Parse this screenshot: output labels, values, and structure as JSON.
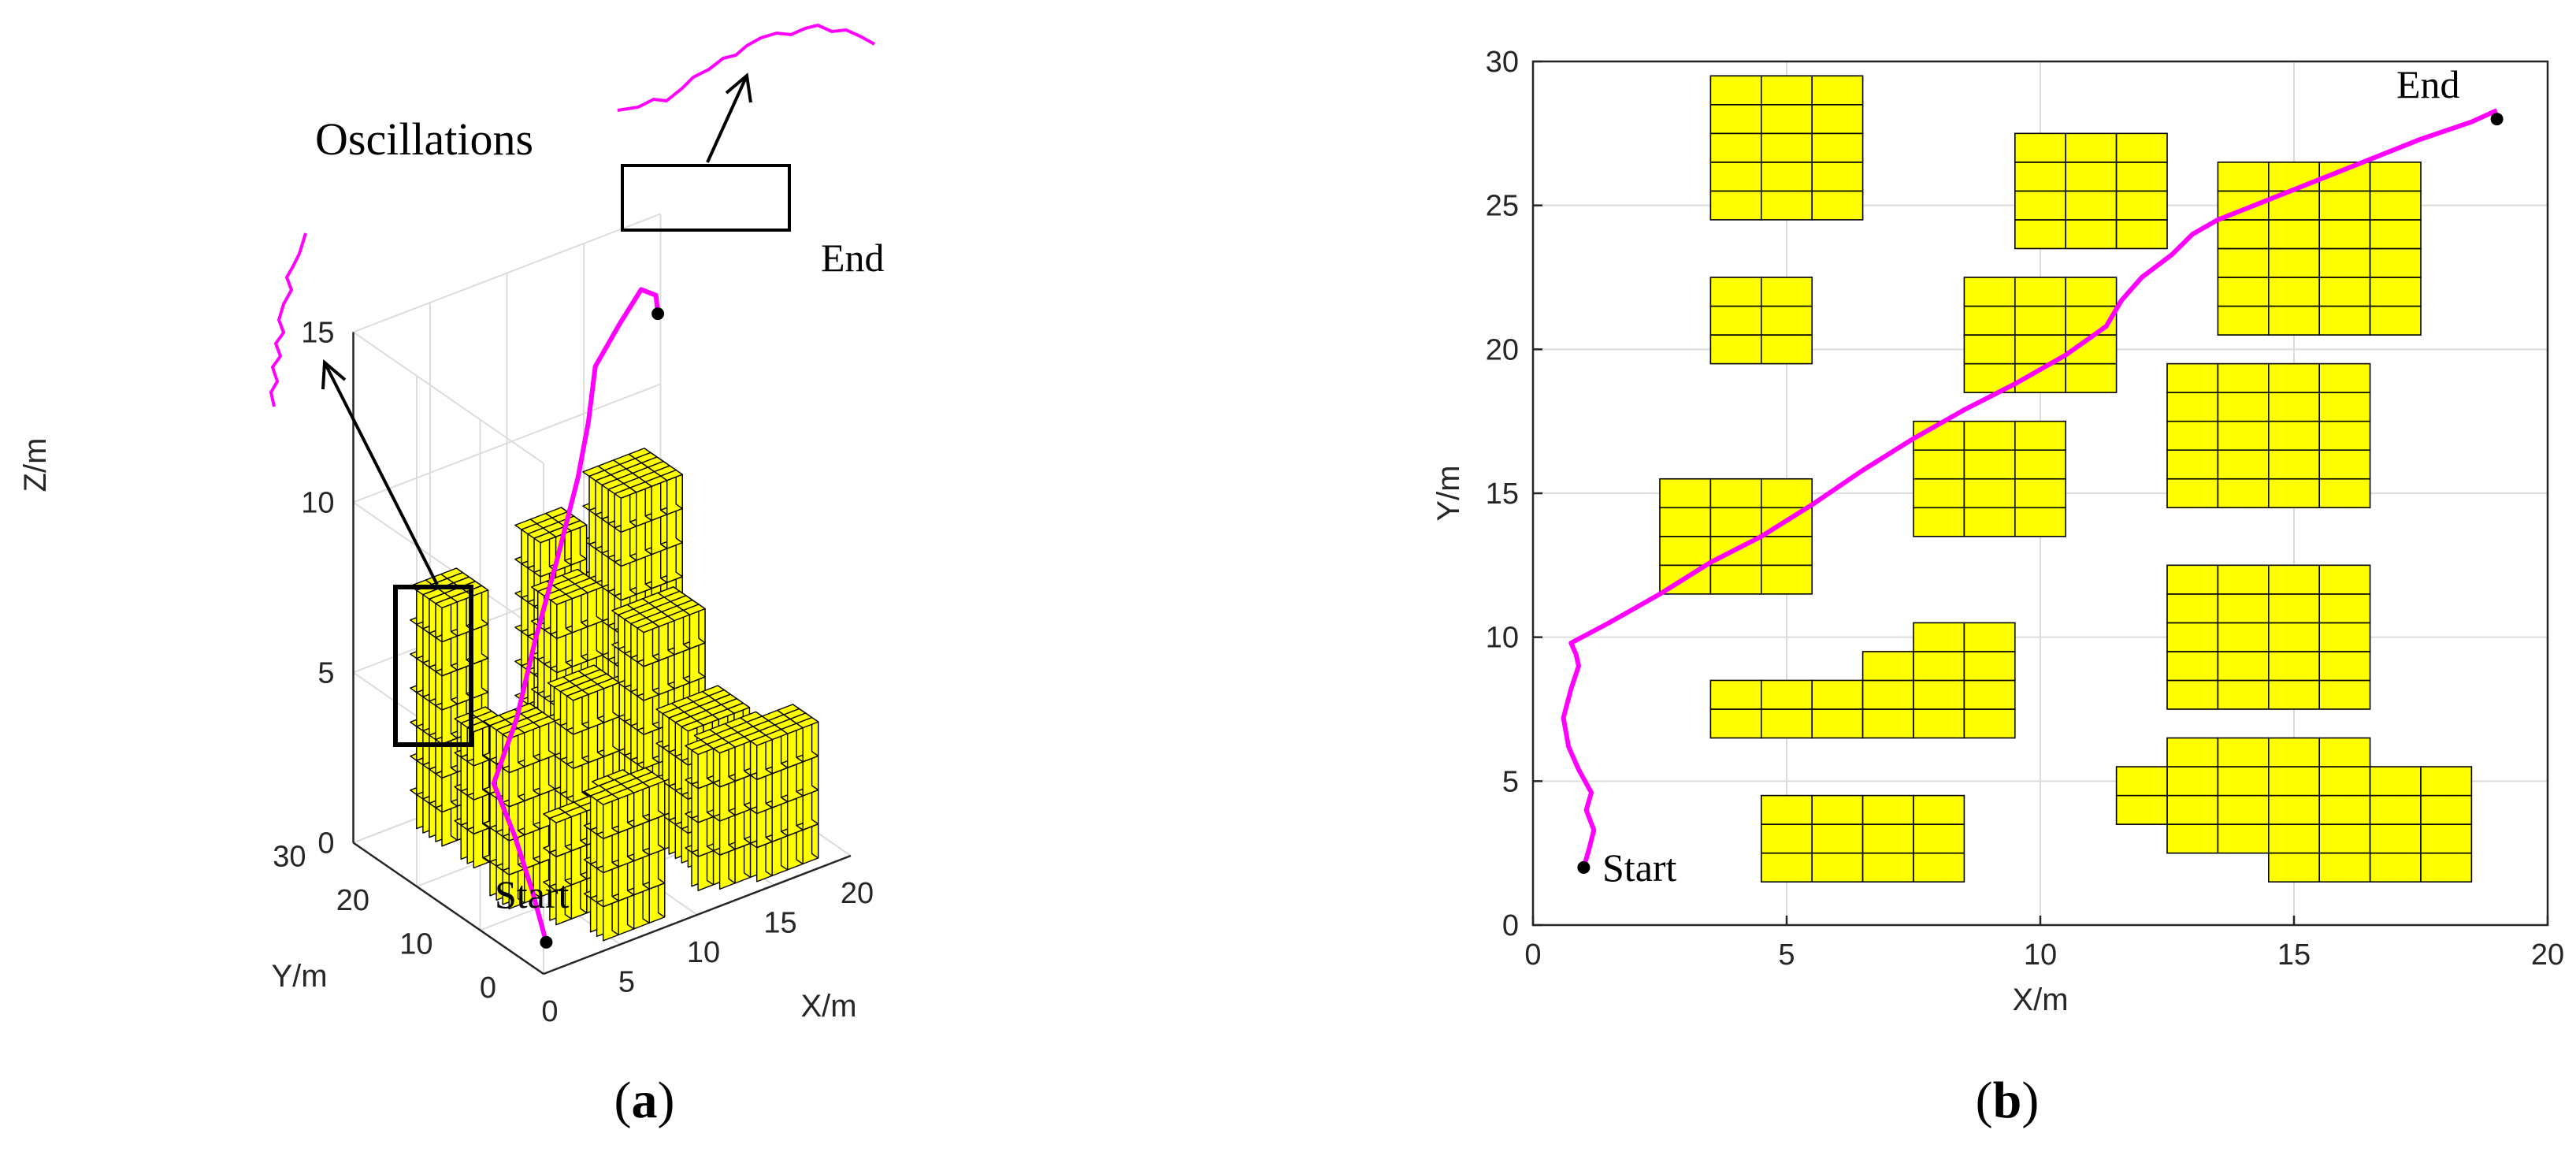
{
  "colors": {
    "obstacle_fill": "#ffff00",
    "obstacle_stroke": "#000000",
    "path": "#ff00ff",
    "marker": "#000000",
    "grid": "#dcdcdc"
  },
  "chart_data": [
    {
      "panel": "a",
      "type": "line",
      "panel_label": {
        "open": "(",
        "letter": "a",
        "close": ")"
      },
      "xlabel": "X/m",
      "ylabel": "Y/m",
      "zlabel": "Z/m",
      "xlim": [
        0,
        20
      ],
      "ylim": [
        0,
        30
      ],
      "zlim": [
        0,
        15
      ],
      "x_ticks": [
        "0",
        "5",
        "10",
        "15",
        "20"
      ],
      "y_ticks": [
        "0",
        "10",
        "20",
        "30"
      ],
      "z_ticks": [
        "0",
        "5",
        "10",
        "15"
      ],
      "grid": true,
      "view": "3-D",
      "start_label": "Start",
      "end_label": "End",
      "annotation": "Oscillations",
      "series": [
        {
          "values_xyz": [
            [
              1,
              2,
              0.5
            ],
            [
              0.9,
              4,
              1.8
            ],
            [
              1,
              7,
              3
            ],
            [
              0.8,
              9.8,
              4.2
            ],
            [
              3,
              11.5,
              5.5
            ],
            [
              5.5,
              14.6,
              7
            ],
            [
              8,
              17.2,
              8.6
            ],
            [
              10.5,
              20,
              10.2
            ],
            [
              12,
              22,
              11.3
            ],
            [
              13.4,
              24.3,
              12.4
            ],
            [
              15.5,
              25.6,
              13.1
            ],
            [
              17.5,
              27,
              13.6
            ],
            [
              19,
              28.3,
              13
            ],
            [
              19,
              28,
              12.5
            ]
          ]
        }
      ],
      "obstacles": [
        {
          "x": [
            3.5,
            6.5
          ],
          "y": [
            24.5,
            29.5
          ],
          "z": [
            0,
            6.5
          ]
        },
        {
          "x": [
            9.5,
            12.5
          ],
          "y": [
            23.5,
            27.5
          ],
          "z": [
            0,
            8
          ]
        },
        {
          "x": [
            13.5,
            17.5
          ],
          "y": [
            20.5,
            26.5
          ],
          "z": [
            0,
            9
          ]
        },
        {
          "x": [
            3.5,
            5.5
          ],
          "y": [
            19.5,
            22.5
          ],
          "z": [
            0,
            4
          ]
        },
        {
          "x": [
            8.5,
            11.5
          ],
          "y": [
            18.5,
            22.5
          ],
          "z": [
            0,
            7
          ]
        },
        {
          "x": [
            12.5,
            16.5
          ],
          "y": [
            14.5,
            19.5
          ],
          "z": [
            0,
            6
          ]
        },
        {
          "x": [
            7.5,
            10.5
          ],
          "y": [
            13.5,
            17.5
          ],
          "z": [
            0,
            5
          ]
        },
        {
          "x": [
            2.5,
            5.5
          ],
          "y": [
            11.5,
            15.5
          ],
          "z": [
            0,
            5
          ]
        },
        {
          "x": [
            12.5,
            16.5
          ],
          "y": [
            7.5,
            12.5
          ],
          "z": [
            0,
            4
          ]
        },
        {
          "x": [
            3.5,
            9.5
          ],
          "y": [
            6.5,
            8.5
          ],
          "z": [
            0,
            3
          ]
        },
        {
          "x": [
            6.5,
            9.5
          ],
          "y": [
            8.5,
            9.5
          ],
          "z": [
            0,
            3
          ]
        },
        {
          "x": [
            7.5,
            9.5
          ],
          "y": [
            9.5,
            10.5
          ],
          "z": [
            0,
            3
          ]
        },
        {
          "x": [
            12.5,
            16.5
          ],
          "y": [
            2.5,
            6.5
          ],
          "z": [
            0,
            4
          ]
        },
        {
          "x": [
            11.5,
            12.5
          ],
          "y": [
            3.5,
            5.5
          ],
          "z": [
            0,
            4
          ]
        },
        {
          "x": [
            16.5,
            18.5
          ],
          "y": [
            1.5,
            5.5
          ],
          "z": [
            0,
            4
          ]
        },
        {
          "x": [
            14.5,
            16.5
          ],
          "y": [
            1.5,
            2.5
          ],
          "z": [
            0,
            4
          ]
        },
        {
          "x": [
            4.5,
            8.5
          ],
          "y": [
            1.5,
            4.5
          ],
          "z": [
            0,
            4
          ]
        }
      ]
    },
    {
      "panel": "b",
      "type": "line",
      "panel_label": {
        "open": "(",
        "letter": "b",
        "close": ")"
      },
      "xlabel": "X/m",
      "ylabel": "Y/m",
      "xlim": [
        0,
        20
      ],
      "ylim": [
        0,
        30
      ],
      "x_ticks": [
        "0",
        "5",
        "10",
        "15",
        "20"
      ],
      "y_ticks": [
        "0",
        "5",
        "10",
        "15",
        "20",
        "25",
        "30"
      ],
      "grid": true,
      "start_label": "Start",
      "end_label": "End",
      "start_point": [
        1,
        2
      ],
      "end_point": [
        19,
        28
      ],
      "series": [
        {
          "x": [
            1,
            1.1,
            1.2,
            1.05,
            1.15,
            0.9,
            0.7,
            0.6,
            0.75,
            0.9,
            0.85,
            0.75,
            1.5,
            2.5,
            3.5,
            4.5,
            5.5,
            6.5,
            7.5,
            8.5,
            9.5,
            10.5,
            11.3,
            11.6,
            12,
            12.6,
            13,
            13.5,
            14.5,
            15.5,
            16.5,
            17.5,
            18.5,
            19
          ],
          "y": [
            2,
            2.6,
            3.3,
            4,
            4.6,
            5.4,
            6.2,
            7.2,
            8.2,
            9,
            9.4,
            9.8,
            10.5,
            11.5,
            12.6,
            13.5,
            14.6,
            15.8,
            16.9,
            17.9,
            18.8,
            19.8,
            20.8,
            21.7,
            22.5,
            23.3,
            24,
            24.5,
            25.2,
            25.9,
            26.6,
            27.3,
            27.9,
            28.3
          ]
        }
      ],
      "obstacles": [
        {
          "x": [
            3.5,
            6.5
          ],
          "y": [
            24.5,
            29.5
          ]
        },
        {
          "x": [
            9.5,
            12.5
          ],
          "y": [
            23.5,
            27.5
          ]
        },
        {
          "x": [
            13.5,
            17.5
          ],
          "y": [
            20.5,
            26.5
          ]
        },
        {
          "x": [
            3.5,
            5.5
          ],
          "y": [
            19.5,
            22.5
          ]
        },
        {
          "x": [
            8.5,
            11.5
          ],
          "y": [
            18.5,
            22.5
          ]
        },
        {
          "x": [
            12.5,
            16.5
          ],
          "y": [
            14.5,
            19.5
          ]
        },
        {
          "x": [
            7.5,
            10.5
          ],
          "y": [
            13.5,
            17.5
          ]
        },
        {
          "x": [
            2.5,
            5.5
          ],
          "y": [
            11.5,
            15.5
          ]
        },
        {
          "x": [
            12.5,
            16.5
          ],
          "y": [
            7.5,
            12.5
          ]
        },
        {
          "x": [
            3.5,
            9.5
          ],
          "y": [
            6.5,
            8.5
          ]
        },
        {
          "x": [
            6.5,
            9.5
          ],
          "y": [
            8.5,
            9.5
          ]
        },
        {
          "x": [
            7.5,
            9.5
          ],
          "y": [
            9.5,
            10.5
          ]
        },
        {
          "x": [
            12.5,
            16.5
          ],
          "y": [
            2.5,
            6.5
          ]
        },
        {
          "x": [
            11.5,
            12.5
          ],
          "y": [
            3.5,
            5.5
          ]
        },
        {
          "x": [
            16.5,
            18.5
          ],
          "y": [
            1.5,
            5.5
          ]
        },
        {
          "x": [
            14.5,
            16.5
          ],
          "y": [
            1.5,
            2.5
          ]
        },
        {
          "x": [
            4.5,
            8.5
          ],
          "y": [
            1.5,
            4.5
          ]
        }
      ]
    }
  ]
}
